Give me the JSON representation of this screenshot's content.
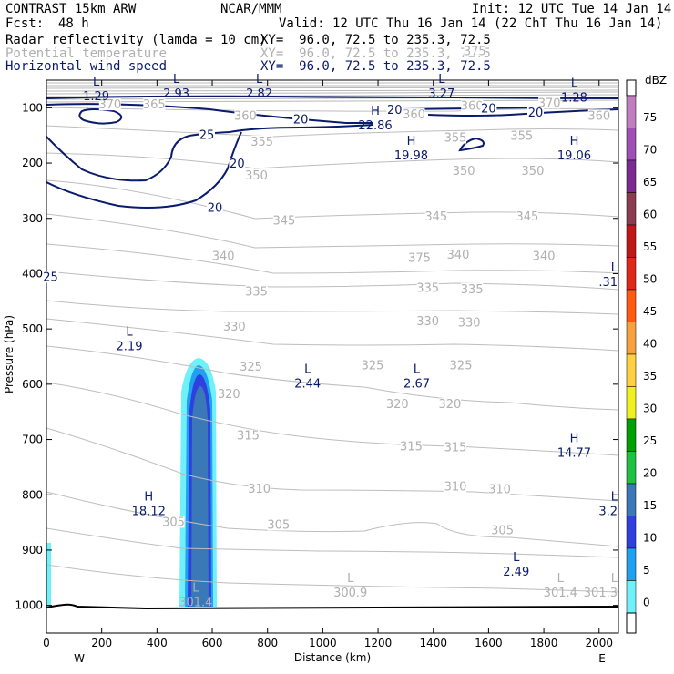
{
  "header": {
    "model": "CONTRAST 15km ARW",
    "org": "NCAR/MMM",
    "init": "Init: 12 UTC Tue 14 Jan 14",
    "fcst_label": "Fcst:",
    "fcst_value": "48 h",
    "valid": "Valid: 12 UTC Thu 16 Jan 14 (22 ChT Thu 16 Jan 14)",
    "fields": [
      {
        "name": "Radar reflectivity (lamda = 10 cm)",
        "xy": "XY=  96.0, 72.5 to 235.3, 72.5",
        "color": "#000000"
      },
      {
        "name": "Potential temperature",
        "xy": "XY=  96.0, 72.5 to 235.3, 72.5",
        "color": "#b0b0b0"
      },
      {
        "name": "Horizontal wind speed",
        "xy": "XY=  96.0, 72.5 to 235.3, 72.5",
        "color": "#0a1a6e"
      }
    ]
  },
  "chart_data": {
    "type": "cross-section",
    "xlabel": "Distance (km)",
    "ylabel": "Pressure (hPa)",
    "xlim": [
      0,
      2070
    ],
    "ylim": [
      1050,
      50
    ],
    "x_ticks": [
      0,
      200,
      400,
      600,
      800,
      1000,
      1200,
      1400,
      1600,
      1800,
      2000
    ],
    "y_ticks": [
      100,
      200,
      300,
      400,
      500,
      600,
      700,
      800,
      900,
      1000
    ],
    "x_end_labels": {
      "left": "W",
      "right": "E"
    },
    "colorbar": {
      "unit": "dBZ",
      "levels": [
        {
          "label": "75",
          "color": "#c07ec0"
        },
        {
          "label": "70",
          "color": "#a050b4"
        },
        {
          "label": "65",
          "color": "#7a2a90"
        },
        {
          "label": "60",
          "color": "#8c3c50"
        },
        {
          "label": "55",
          "color": "#c01818"
        },
        {
          "label": "50",
          "color": "#e02818"
        },
        {
          "label": "45",
          "color": "#ff5a10"
        },
        {
          "label": "40",
          "color": "#f7a040"
        },
        {
          "label": "35",
          "color": "#ffd040"
        },
        {
          "label": "30",
          "color": "#f0f020"
        },
        {
          "label": "25",
          "color": "#00a000"
        },
        {
          "label": "20",
          "color": "#20c040"
        },
        {
          "label": "15",
          "color": "#3a78b8"
        },
        {
          "label": "10",
          "color": "#3040e0"
        },
        {
          "label": "5",
          "color": "#20a0f0"
        },
        {
          "label": "0",
          "color": "#70f0f8"
        }
      ],
      "bottom_label": "0"
    },
    "theta_labels": [
      {
        "x": 1350,
        "p": 375,
        "text": "375"
      },
      {
        "x": 1550,
        "p": 1,
        "text": "375"
      },
      {
        "x": 230,
        "p": 98,
        "text": "370"
      },
      {
        "x": 390,
        "p": 98,
        "text": "365"
      },
      {
        "x": 1820,
        "p": 95,
        "text": "370"
      },
      {
        "x": 720,
        "p": 118,
        "text": "360"
      },
      {
        "x": 2000,
        "p": 118,
        "text": "360"
      },
      {
        "x": 1330,
        "p": 116,
        "text": "360"
      },
      {
        "x": 1540,
        "p": 100,
        "text": "360"
      },
      {
        "x": 780,
        "p": 165,
        "text": "355"
      },
      {
        "x": 1480,
        "p": 158,
        "text": "355"
      },
      {
        "x": 1720,
        "p": 155,
        "text": "355"
      },
      {
        "x": 760,
        "p": 226,
        "text": "350"
      },
      {
        "x": 1510,
        "p": 218,
        "text": "350"
      },
      {
        "x": 1760,
        "p": 218,
        "text": "350"
      },
      {
        "x": 860,
        "p": 308,
        "text": "345"
      },
      {
        "x": 1410,
        "p": 300,
        "text": "345"
      },
      {
        "x": 1740,
        "p": 300,
        "text": "345"
      },
      {
        "x": 640,
        "p": 372,
        "text": "340"
      },
      {
        "x": 1490,
        "p": 370,
        "text": "340"
      },
      {
        "x": 1800,
        "p": 372,
        "text": "340"
      },
      {
        "x": 760,
        "p": 436,
        "text": "335"
      },
      {
        "x": 1380,
        "p": 430,
        "text": "335"
      },
      {
        "x": 1540,
        "p": 432,
        "text": "335"
      },
      {
        "x": 680,
        "p": 500,
        "text": "330"
      },
      {
        "x": 1380,
        "p": 490,
        "text": "330"
      },
      {
        "x": 1530,
        "p": 492,
        "text": "330"
      },
      {
        "x": 740,
        "p": 572,
        "text": "325"
      },
      {
        "x": 1180,
        "p": 570,
        "text": "325"
      },
      {
        "x": 1500,
        "p": 570,
        "text": "325"
      },
      {
        "x": 660,
        "p": 622,
        "text": "320"
      },
      {
        "x": 1270,
        "p": 640,
        "text": "320"
      },
      {
        "x": 1460,
        "p": 640,
        "text": "320"
      },
      {
        "x": 730,
        "p": 697,
        "text": "315"
      },
      {
        "x": 1320,
        "p": 716,
        "text": "315"
      },
      {
        "x": 1480,
        "p": 718,
        "text": "315"
      },
      {
        "x": 770,
        "p": 793,
        "text": "310"
      },
      {
        "x": 1480,
        "p": 789,
        "text": "310"
      },
      {
        "x": 1640,
        "p": 794,
        "text": "310"
      },
      {
        "x": 460,
        "p": 853,
        "text": "305"
      },
      {
        "x": 840,
        "p": 858,
        "text": "305"
      },
      {
        "x": 1650,
        "p": 868,
        "text": "305"
      }
    ],
    "wind_labels": [
      {
        "x": 920,
        "p": 125,
        "text": "20"
      },
      {
        "x": 1260,
        "p": 108,
        "text": "20"
      },
      {
        "x": 1600,
        "p": 105,
        "text": "20"
      },
      {
        "x": 1770,
        "p": 113,
        "text": "20"
      },
      {
        "x": 580,
        "p": 153,
        "text": "25"
      },
      {
        "x": 690,
        "p": 205,
        "text": "20"
      },
      {
        "x": 610,
        "p": 285,
        "text": "20"
      },
      {
        "x": 15,
        "p": 410,
        "text": "25"
      }
    ],
    "extrema": [
      {
        "kind": "L",
        "x": 180,
        "p": 60,
        "value": "1.29",
        "color": "#0a1a6e"
      },
      {
        "kind": "L",
        "x": 470,
        "p": 55,
        "value": "2.93",
        "color": "#0a1a6e"
      },
      {
        "kind": "L",
        "x": 770,
        "p": 55,
        "value": "2.82",
        "color": "#0a1a6e"
      },
      {
        "kind": "L",
        "x": 1430,
        "p": 55,
        "value": "3.27",
        "color": "#0a1a6e"
      },
      {
        "kind": "L",
        "x": 1910,
        "p": 62,
        "value": "1.28",
        "color": "#0a1a6e"
      },
      {
        "kind": "H",
        "x": 1190,
        "p": 113,
        "value": "22.86",
        "color": "#0a1a6e"
      },
      {
        "kind": "H",
        "x": 1320,
        "p": 167,
        "value": "19.98",
        "color": "#0a1a6e"
      },
      {
        "kind": "H",
        "x": 1910,
        "p": 167,
        "value": "19.06",
        "color": "#0a1a6e"
      },
      {
        "kind": "L",
        "x": 2070,
        "p": 396,
        "value": ".31",
        "color": "#0a1a6e"
      },
      {
        "kind": "L",
        "x": 300,
        "p": 512,
        "value": "2.19",
        "color": "#0a1a6e"
      },
      {
        "kind": "L",
        "x": 945,
        "p": 580,
        "value": "2.44",
        "color": "#0a1a6e"
      },
      {
        "kind": "L",
        "x": 1340,
        "p": 580,
        "value": "2.67",
        "color": "#0a1a6e"
      },
      {
        "kind": "H",
        "x": 1910,
        "p": 705,
        "value": "14.77",
        "color": "#0a1a6e"
      },
      {
        "kind": "H",
        "x": 370,
        "p": 810,
        "value": "18.12",
        "color": "#0a1a6e"
      },
      {
        "kind": "L",
        "x": 2070,
        "p": 810,
        "value": "3.2",
        "color": "#0a1a6e"
      },
      {
        "kind": "L",
        "x": 1700,
        "p": 920,
        "value": "2.49",
        "color": "#0a1a6e"
      },
      {
        "kind": "L",
        "x": 540,
        "p": 975,
        "value": "301.4",
        "color": "#b0b0b0"
      },
      {
        "kind": "L",
        "x": 1100,
        "p": 958,
        "value": "300.9",
        "color": "#b0b0b0"
      },
      {
        "kind": "L",
        "x": 1860,
        "p": 958,
        "value": "301.4",
        "color": "#b0b0b0"
      },
      {
        "kind": "L",
        "x": 2040,
        "p": 958,
        "value": "301.3",
        "color": "#b0b0b0"
      }
    ]
  }
}
